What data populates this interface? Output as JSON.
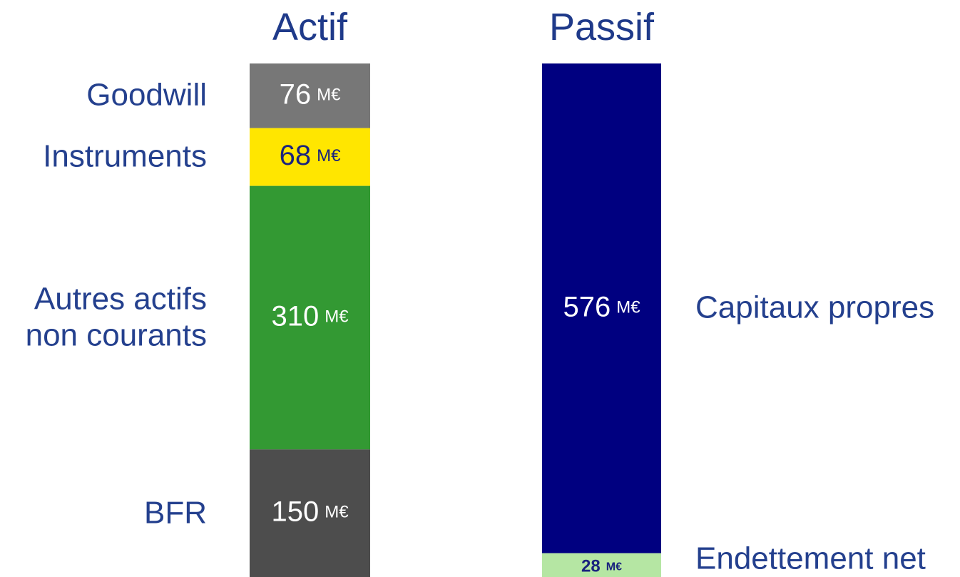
{
  "chart_data": {
    "type": "balance_sheet",
    "unit": "M€",
    "bars": [
      {
        "name": "Actif",
        "segments": [
          {
            "name": "Goodwill",
            "value": 76,
            "color": "#777777",
            "label_color": "#ffffff"
          },
          {
            "name": "Instruments",
            "value": 68,
            "color": "#ffe600",
            "label_color": "#1a237e"
          },
          {
            "name": "Autres actifs non courants",
            "value": 310,
            "color": "#339933",
            "label_color": "#ffffff"
          },
          {
            "name": "BFR",
            "value": 150,
            "color": "#4d4d4d",
            "label_color": "#ffffff"
          }
        ]
      },
      {
        "name": "Passif",
        "segments": [
          {
            "name": "Capitaux propres",
            "value": 576,
            "color": "#000080",
            "label_color": "#ffffff"
          },
          {
            "name": "Endettement net",
            "value": 28,
            "color": "#b5e6a3",
            "label_color": "#1a237e"
          }
        ]
      }
    ]
  }
}
